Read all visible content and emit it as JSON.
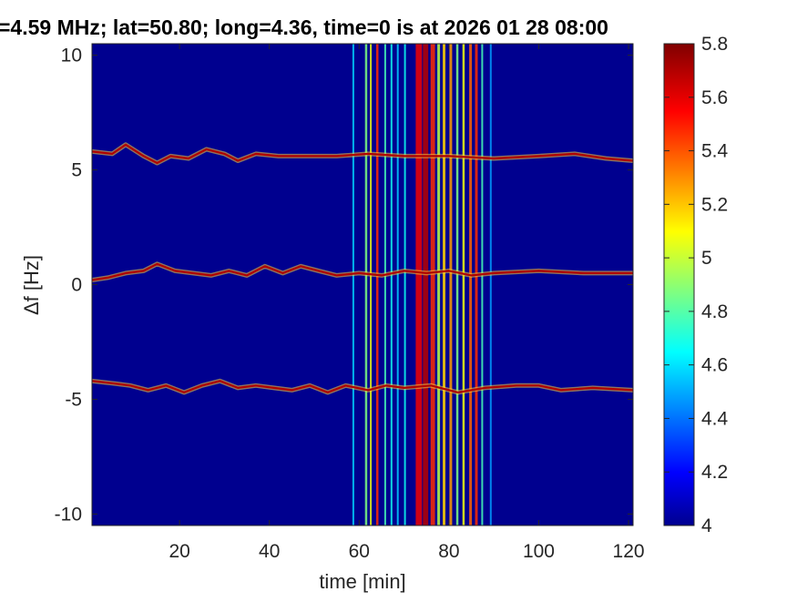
{
  "chart_data": {
    "type": "heatmap",
    "title": "=4.59 MHz;  lat=50.80; long=4.36, time=0 is at 2026 01 28 08:00",
    "xlabel": "time [min]",
    "ylabel": "Δf [Hz]",
    "xlim": [
      0.5,
      121
    ],
    "ylim": [
      -10.5,
      10.5
    ],
    "x_ticks": [
      20,
      40,
      60,
      80,
      100,
      120
    ],
    "x_tick_labels": [
      "20",
      "40",
      "60",
      "80",
      "100",
      "120"
    ],
    "y_ticks": [
      10,
      5,
      0,
      -5,
      -10
    ],
    "y_tick_labels": [
      "10",
      "5",
      "0",
      "-5",
      "-10"
    ],
    "colorbar": {
      "colormap": "jet",
      "range": [
        4,
        5.8
      ],
      "ticks": [
        5.8,
        5.6,
        5.4,
        5.2,
        5,
        4.8,
        4.6,
        4.4,
        4.2,
        4
      ],
      "tick_labels": [
        "5.8",
        "5.6",
        "5.4",
        "5.2",
        "5",
        "4.8",
        "4.6",
        "4.4",
        "4.2",
        "4"
      ]
    },
    "background_value": 4.0,
    "traces": [
      {
        "name": "upper",
        "points": [
          [
            0.5,
            5.8
          ],
          [
            5,
            5.7
          ],
          [
            8,
            6.1
          ],
          [
            12,
            5.6
          ],
          [
            15,
            5.3
          ],
          [
            18,
            5.6
          ],
          [
            22,
            5.5
          ],
          [
            26,
            5.9
          ],
          [
            30,
            5.7
          ],
          [
            33,
            5.4
          ],
          [
            37,
            5.7
          ],
          [
            42,
            5.6
          ],
          [
            48,
            5.6
          ],
          [
            55,
            5.6
          ],
          [
            62,
            5.7
          ],
          [
            70,
            5.6
          ],
          [
            80,
            5.6
          ],
          [
            90,
            5.5
          ],
          [
            100,
            5.6
          ],
          [
            108,
            5.7
          ],
          [
            115,
            5.5
          ],
          [
            121,
            5.4
          ]
        ]
      },
      {
        "name": "middle",
        "points": [
          [
            0.5,
            0.2
          ],
          [
            4,
            0.3
          ],
          [
            8,
            0.5
          ],
          [
            12,
            0.6
          ],
          [
            15,
            0.9
          ],
          [
            19,
            0.6
          ],
          [
            23,
            0.5
          ],
          [
            27,
            0.4
          ],
          [
            31,
            0.6
          ],
          [
            35,
            0.4
          ],
          [
            39,
            0.8
          ],
          [
            43,
            0.5
          ],
          [
            47,
            0.8
          ],
          [
            51,
            0.6
          ],
          [
            55,
            0.4
          ],
          [
            60,
            0.5
          ],
          [
            65,
            0.4
          ],
          [
            70,
            0.6
          ],
          [
            75,
            0.5
          ],
          [
            80,
            0.6
          ],
          [
            85,
            0.4
          ],
          [
            90,
            0.5
          ],
          [
            100,
            0.6
          ],
          [
            110,
            0.5
          ],
          [
            121,
            0.5
          ]
        ]
      },
      {
        "name": "lower",
        "points": [
          [
            0.5,
            -4.2
          ],
          [
            5,
            -4.3
          ],
          [
            9,
            -4.4
          ],
          [
            13,
            -4.6
          ],
          [
            17,
            -4.4
          ],
          [
            21,
            -4.7
          ],
          [
            25,
            -4.4
          ],
          [
            29,
            -4.2
          ],
          [
            33,
            -4.5
          ],
          [
            37,
            -4.4
          ],
          [
            41,
            -4.5
          ],
          [
            45,
            -4.6
          ],
          [
            49,
            -4.4
          ],
          [
            53,
            -4.7
          ],
          [
            57,
            -4.4
          ],
          [
            62,
            -4.6
          ],
          [
            66,
            -4.4
          ],
          [
            70,
            -4.5
          ],
          [
            76,
            -4.4
          ],
          [
            82,
            -4.7
          ],
          [
            88,
            -4.5
          ],
          [
            95,
            -4.4
          ],
          [
            100,
            -4.4
          ],
          [
            105,
            -4.6
          ],
          [
            112,
            -4.5
          ],
          [
            121,
            -4.6
          ]
        ]
      }
    ],
    "vertical_bands": [
      {
        "x": 58.5,
        "width": 0.4,
        "value": 4.6
      },
      {
        "x": 61.3,
        "width": 0.5,
        "value": 4.9
      },
      {
        "x": 62.4,
        "width": 0.4,
        "value": 5.1
      },
      {
        "x": 63.8,
        "width": 0.5,
        "value": 5.5
      },
      {
        "x": 65.6,
        "width": 0.4,
        "value": 4.8
      },
      {
        "x": 67.0,
        "width": 0.4,
        "value": 4.7
      },
      {
        "x": 68.4,
        "width": 0.4,
        "value": 4.6
      },
      {
        "x": 70.0,
        "width": 0.4,
        "value": 4.7
      },
      {
        "x": 72.6,
        "width": 1.4,
        "value": 5.6
      },
      {
        "x": 74.2,
        "width": 1.2,
        "value": 5.7
      },
      {
        "x": 75.9,
        "width": 1.0,
        "value": 5.5
      },
      {
        "x": 77.4,
        "width": 0.6,
        "value": 5.0
      },
      {
        "x": 78.6,
        "width": 0.6,
        "value": 5.2
      },
      {
        "x": 80.1,
        "width": 0.6,
        "value": 5.3
      },
      {
        "x": 81.6,
        "width": 0.5,
        "value": 4.9
      },
      {
        "x": 83.0,
        "width": 0.5,
        "value": 5.1
      },
      {
        "x": 84.5,
        "width": 0.6,
        "value": 5.4
      },
      {
        "x": 85.8,
        "width": 0.6,
        "value": 5.5
      },
      {
        "x": 87.2,
        "width": 0.4,
        "value": 4.8
      },
      {
        "x": 89.1,
        "width": 0.4,
        "value": 4.5
      }
    ]
  }
}
